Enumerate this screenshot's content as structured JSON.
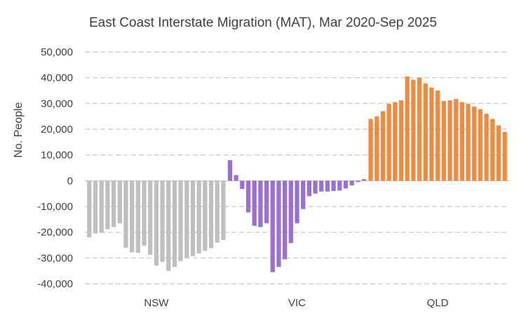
{
  "chart_data": {
    "type": "bar",
    "title": "East Coast Interstate Migration (MAT), Mar 2020-Sep 2025",
    "xlabel": "",
    "ylabel": "No. People",
    "ylim": [
      -40000,
      50000
    ],
    "yticks": [
      50000,
      40000,
      30000,
      20000,
      10000,
      0,
      -10000,
      -20000,
      -30000,
      -40000
    ],
    "ytick_labels": [
      "50,000",
      "40,000",
      "30,000",
      "20,000",
      "10,000",
      "0",
      "-10,000",
      "-20,000",
      "-30,000",
      "-40,000"
    ],
    "grid": true,
    "colors": {
      "NSW": "#bfbfbf",
      "VIC": "#9b6fd6",
      "QLD": "#f08a3e",
      "grid": "#d0d0d0",
      "text": "#404040"
    },
    "groups": [
      {
        "name": "NSW",
        "values": [
          -22000,
          -20500,
          -20200,
          -18800,
          -18000,
          -16500,
          -26000,
          -27800,
          -28000,
          -25200,
          -28800,
          -33000,
          -31500,
          -35000,
          -33500,
          -31200,
          -30000,
          -29300,
          -28200,
          -27200,
          -26200,
          -24000,
          -23000
        ]
      },
      {
        "name": "VIC",
        "values": [
          8000,
          2200,
          -3200,
          -12300,
          -17500,
          -18000,
          -16500,
          -35500,
          -33500,
          -30500,
          -24200,
          -16500,
          -11000,
          -6000,
          -5000,
          -4200,
          -4200,
          -4000,
          -3800,
          -3000,
          -1800,
          -500,
          600
        ]
      },
      {
        "name": "QLD",
        "values": [
          24000,
          25000,
          27000,
          29800,
          30500,
          31200,
          40500,
          39200,
          40000,
          37800,
          36200,
          35000,
          31000,
          31200,
          31800,
          30500,
          29800,
          28800,
          27800,
          26000,
          24000,
          21500,
          19000
        ]
      }
    ]
  }
}
